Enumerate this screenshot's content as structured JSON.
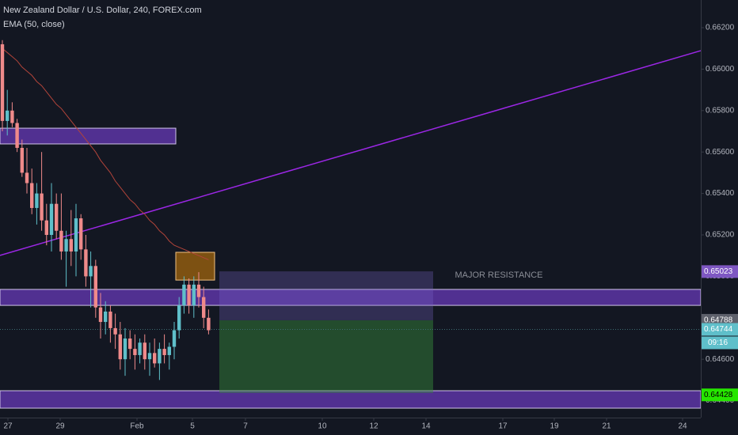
{
  "header": {
    "title": "New Zealand Dollar / U.S. Dollar, 240, FOREX.com",
    "indicator": "EMA (50, close)"
  },
  "chart_data": {
    "type": "candlestick",
    "ylim": [
      0.6439,
      0.6633
    ],
    "yticks": [
      {
        "value": 0.662,
        "label": "0.66200"
      },
      {
        "value": 0.66,
        "label": "0.66000"
      },
      {
        "value": 0.658,
        "label": "0.65800"
      },
      {
        "value": 0.656,
        "label": "0.65600"
      },
      {
        "value": 0.654,
        "label": "0.65400"
      },
      {
        "value": 0.652,
        "label": "0.65200"
      },
      {
        "value": 0.65,
        "label": "0.65000"
      },
      {
        "value": 0.648,
        "label": "0.64800"
      },
      {
        "value": 0.646,
        "label": "0.64600"
      },
      {
        "value": 0.644,
        "label": "0.64400"
      }
    ],
    "x_labels": [
      "27",
      "29",
      "Feb",
      "5",
      "7",
      "10",
      "12",
      "14",
      "17",
      "19",
      "21",
      "24"
    ],
    "up_color": "#5fbfca",
    "down_color": "#ef8a8a",
    "candles": [
      [
        0.6612,
        0.6614,
        0.657,
        0.6575
      ],
      [
        0.6575,
        0.659,
        0.6568,
        0.658
      ],
      [
        0.658,
        0.6584,
        0.6572,
        0.6574
      ],
      [
        0.6574,
        0.6576,
        0.656,
        0.6562
      ],
      [
        0.6562,
        0.6566,
        0.6548,
        0.655
      ],
      [
        0.655,
        0.6562,
        0.654,
        0.6545
      ],
      [
        0.6545,
        0.6552,
        0.653,
        0.6533
      ],
      [
        0.6533,
        0.6545,
        0.6525,
        0.654
      ],
      [
        0.654,
        0.656,
        0.6522,
        0.6527
      ],
      [
        0.6527,
        0.6535,
        0.6515,
        0.652
      ],
      [
        0.652,
        0.6545,
        0.6512,
        0.6535
      ],
      [
        0.6535,
        0.654,
        0.6518,
        0.6522
      ],
      [
        0.6522,
        0.654,
        0.6508,
        0.6512
      ],
      [
        0.6512,
        0.6522,
        0.6495,
        0.6518
      ],
      [
        0.6518,
        0.6532,
        0.6505,
        0.6512
      ],
      [
        0.6512,
        0.6535,
        0.65,
        0.6528
      ],
      [
        0.6528,
        0.653,
        0.6508,
        0.6513
      ],
      [
        0.6513,
        0.652,
        0.6495,
        0.65
      ],
      [
        0.65,
        0.6512,
        0.6485,
        0.6505
      ],
      [
        0.6505,
        0.6508,
        0.648,
        0.6485
      ],
      [
        0.6485,
        0.6492,
        0.647,
        0.6478
      ],
      [
        0.6478,
        0.6488,
        0.6472,
        0.6483
      ],
      [
        0.6483,
        0.6486,
        0.6468,
        0.6475
      ],
      [
        0.6475,
        0.6482,
        0.6465,
        0.6472
      ],
      [
        0.6472,
        0.6478,
        0.6455,
        0.646
      ],
      [
        0.646,
        0.6475,
        0.6452,
        0.647
      ],
      [
        0.647,
        0.6474,
        0.646,
        0.6465
      ],
      [
        0.6465,
        0.6472,
        0.6455,
        0.6462
      ],
      [
        0.6462,
        0.647,
        0.6458,
        0.6468
      ],
      [
        0.6468,
        0.6472,
        0.6455,
        0.646
      ],
      [
        0.646,
        0.6468,
        0.6452,
        0.6463
      ],
      [
        0.6463,
        0.647,
        0.6456,
        0.6458
      ],
      [
        0.6458,
        0.6468,
        0.645,
        0.6465
      ],
      [
        0.6465,
        0.6472,
        0.6458,
        0.6462
      ],
      [
        0.6462,
        0.6468,
        0.6455,
        0.6466
      ],
      [
        0.6466,
        0.6478,
        0.646,
        0.6474
      ],
      [
        0.6474,
        0.649,
        0.647,
        0.6486
      ],
      [
        0.6486,
        0.65,
        0.6482,
        0.6496
      ],
      [
        0.6496,
        0.6499,
        0.6482,
        0.6486
      ],
      [
        0.6486,
        0.65,
        0.648,
        0.6496
      ],
      [
        0.6496,
        0.6502,
        0.6485,
        0.649
      ],
      [
        0.649,
        0.6495,
        0.6475,
        0.648
      ],
      [
        0.648,
        0.6484,
        0.6472,
        0.6474
      ]
    ],
    "ema": [
      0.661,
      0.6608,
      0.6606,
      0.6604,
      0.6601,
      0.6599,
      0.6597,
      0.6594,
      0.6592,
      0.6589,
      0.6586,
      0.6583,
      0.6581,
      0.6578,
      0.6575,
      0.6572,
      0.6569,
      0.6566,
      0.6563,
      0.656,
      0.6556,
      0.6553,
      0.655,
      0.6546,
      0.6543,
      0.654,
      0.6537,
      0.6535,
      0.6532,
      0.653,
      0.6527,
      0.6525,
      0.6522,
      0.652,
      0.6517,
      0.6515,
      0.6514,
      0.6513,
      0.6512,
      0.6511,
      0.651,
      0.6509,
      0.6508
    ],
    "zones": [
      [
        0.65715,
        0.65639
      ],
      [
        0.64937,
        0.6486
      ],
      [
        0.64448,
        0.64364
      ]
    ],
    "box": [
      0.65116,
      0.64982
    ],
    "trendline": [
      0.65101,
      0.66089
    ],
    "position": {
      "entry": 0.64788,
      "target": 0.65024,
      "stop": 0.64437
    },
    "annotation": "MAJOR RESISTANCE",
    "price_labels": [
      {
        "value": 0.65023,
        "color": "#7e57c2"
      },
      {
        "value": 0.64788,
        "color": "#5d606b"
      },
      {
        "value": 0.64744,
        "color": "#5fbfca"
      },
      {
        "value": 0.64428,
        "color": "#26e600"
      }
    ],
    "countdown": "09:16"
  }
}
